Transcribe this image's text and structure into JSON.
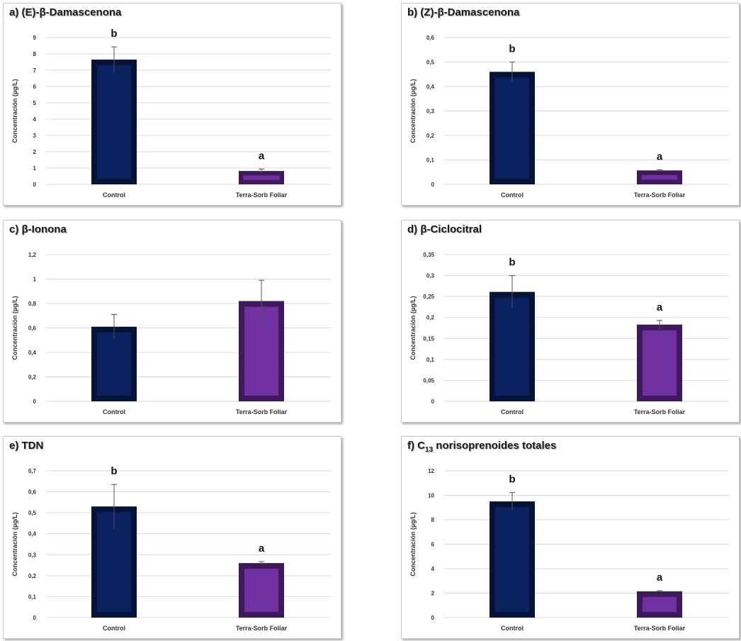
{
  "colors": {
    "control_bar": "#0b2160",
    "control_bar_dark": "#061338",
    "treatment_bar": "#7030a0",
    "treatment_bar_dark": "#3e1a5c",
    "grid": "#d9d9d9",
    "axis_text": "#333333",
    "error_bar": "#555555"
  },
  "chart_data": [
    {
      "type": "bar",
      "title": "a) (E)-β-Damascenona",
      "ylabel": "Concentración  (µg/L)",
      "categories": [
        "Control",
        "Terra-Sorb Foliar"
      ],
      "values": [
        7.65,
        0.82
      ],
      "errors": [
        0.78,
        0.12
      ],
      "significance": [
        "b",
        "a"
      ],
      "ylim": [
        0,
        9
      ],
      "yticks": [
        "0",
        "1",
        "2",
        "3",
        "4",
        "5",
        "6",
        "7",
        "8",
        "9"
      ],
      "grid": true
    },
    {
      "type": "bar",
      "title": "b) (Z)-β-Damascenona",
      "ylabel": "Concentración  (µg/L)",
      "categories": [
        "Control",
        "Terra-Sorb Foliar"
      ],
      "values": [
        0.46,
        0.057
      ],
      "errors": [
        0.04,
        0.003
      ],
      "significance": [
        "b",
        "a"
      ],
      "ylim": [
        0,
        0.6
      ],
      "yticks": [
        "0",
        "0,1",
        "0,2",
        "0,3",
        "0,4",
        "0,5",
        "0,6"
      ],
      "grid": true
    },
    {
      "type": "bar",
      "title": "c) β-Ionona",
      "ylabel": "Concentración  (µg/L)",
      "categories": [
        "Control",
        "Terra-Sorb Foliar"
      ],
      "values": [
        0.61,
        0.82
      ],
      "errors": [
        0.1,
        0.17
      ],
      "significance": [
        "",
        ""
      ],
      "ylim": [
        0,
        1.2
      ],
      "yticks": [
        "0",
        "0,2",
        "0,4",
        "0,6",
        "0,8",
        "1",
        "1,2"
      ],
      "grid": true
    },
    {
      "type": "bar",
      "title": "d) β-Ciclocitral",
      "ylabel": "Concentración  (µg/L)",
      "categories": [
        "Control",
        "Terra-Sorb Foliar"
      ],
      "values": [
        0.261,
        0.183
      ],
      "errors": [
        0.039,
        0.01
      ],
      "significance": [
        "b",
        "a"
      ],
      "ylim": [
        0,
        0.35
      ],
      "yticks": [
        "0",
        "0,05",
        "0,1",
        "0,15",
        "0,2",
        "0,25",
        "0,3",
        "0,35"
      ],
      "grid": true
    },
    {
      "type": "bar",
      "title": "e) TDN",
      "ylabel": "Concentración  (µg/L)",
      "categories": [
        "Control",
        "Terra-Sorb Foliar"
      ],
      "values": [
        0.53,
        0.26
      ],
      "errors": [
        0.105,
        0.007
      ],
      "significance": [
        "b",
        "a"
      ],
      "ylim": [
        0,
        0.7
      ],
      "yticks": [
        "0",
        "0,1",
        "0,2",
        "0,3",
        "0,4",
        "0,5",
        "0,6",
        "0,7"
      ],
      "grid": true
    },
    {
      "type": "bar",
      "title_main": "f) C",
      "title_sub": "13",
      "title_rest": " norisoprenoides totales",
      "ylabel": "Concentración  (µg/L)",
      "categories": [
        "Control",
        "Terra-Sorb Foliar"
      ],
      "values": [
        9.5,
        2.15
      ],
      "errors": [
        0.72,
        0.05
      ],
      "significance": [
        "b",
        "a"
      ],
      "ylim": [
        0,
        12
      ],
      "yticks": [
        "0",
        "2",
        "4",
        "6",
        "8",
        "10",
        "12"
      ],
      "grid": true
    }
  ]
}
